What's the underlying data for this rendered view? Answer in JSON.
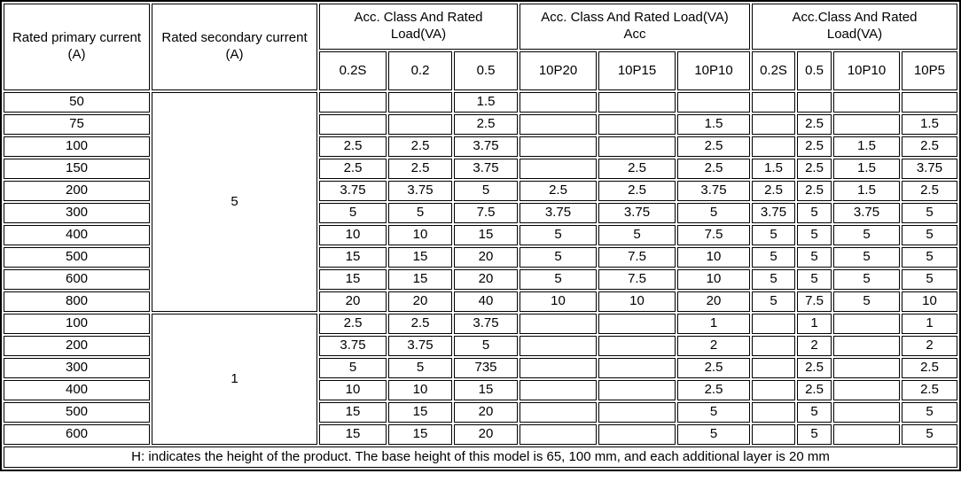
{
  "table": {
    "headers": {
      "primary": "Rated primary current (A)",
      "secondary": "Rated secondary current (A)"
    },
    "groups": [
      {
        "label": "Acc. Class And Rated Load(VA)",
        "cols": [
          "0.2S",
          "0.2",
          "0.5"
        ]
      },
      {
        "label": "Acc. Class And Rated Load(VA) Acc",
        "cols": [
          "10P20",
          "10P15",
          "10P10"
        ]
      },
      {
        "label": "Acc.Class And Rated Load(VA)",
        "cols": [
          "0.2S",
          "0.5",
          "10P10",
          "10P5"
        ]
      }
    ],
    "blocks": [
      {
        "secondary_current": "5",
        "rows": [
          {
            "primary": "50",
            "values": [
              "",
              "",
              "1.5",
              "",
              "",
              "",
              "",
              "",
              "",
              ""
            ]
          },
          {
            "primary": "75",
            "values": [
              "",
              "",
              "2.5",
              "",
              "",
              "1.5",
              "",
              "2.5",
              "",
              "1.5"
            ]
          },
          {
            "primary": "100",
            "values": [
              "2.5",
              "2.5",
              "3.75",
              "",
              "",
              "2.5",
              "",
              "2.5",
              "1.5",
              "2.5"
            ]
          },
          {
            "primary": "150",
            "values": [
              "2.5",
              "2.5",
              "3.75",
              "",
              "2.5",
              "2.5",
              "1.5",
              "2.5",
              "1.5",
              "3.75"
            ]
          },
          {
            "primary": "200",
            "values": [
              "3.75",
              "3.75",
              "5",
              "2.5",
              "2.5",
              "3.75",
              "2.5",
              "2.5",
              "1.5",
              "2.5"
            ]
          },
          {
            "primary": "300",
            "values": [
              "5",
              "5",
              "7.5",
              "3.75",
              "3.75",
              "5",
              "3.75",
              "5",
              "3.75",
              "5"
            ]
          },
          {
            "primary": "400",
            "values": [
              "10",
              "10",
              "15",
              "5",
              "5",
              "7.5",
              "5",
              "5",
              "5",
              "5"
            ]
          },
          {
            "primary": "500",
            "values": [
              "15",
              "15",
              "20",
              "5",
              "7.5",
              "10",
              "5",
              "5",
              "5",
              "5"
            ]
          },
          {
            "primary": "600",
            "values": [
              "15",
              "15",
              "20",
              "5",
              "7.5",
              "10",
              "5",
              "5",
              "5",
              "5"
            ]
          },
          {
            "primary": "800",
            "values": [
              "20",
              "20",
              "40",
              "10",
              "10",
              "20",
              "5",
              "7.5",
              "5",
              "10"
            ]
          }
        ]
      },
      {
        "secondary_current": "1",
        "rows": [
          {
            "primary": "100",
            "values": [
              "2.5",
              "2.5",
              "3.75",
              "",
              "",
              "1",
              "",
              "1",
              "",
              "1"
            ]
          },
          {
            "primary": "200",
            "values": [
              "3.75",
              "3.75",
              "5",
              "",
              "",
              "2",
              "",
              "2",
              "",
              "2"
            ]
          },
          {
            "primary": "300",
            "values": [
              "5",
              "5",
              "735",
              "",
              "",
              "2.5",
              "",
              "2.5",
              "",
              "2.5"
            ]
          },
          {
            "primary": "400",
            "values": [
              "10",
              "10",
              "15",
              "",
              "",
              "2.5",
              "",
              "2.5",
              "",
              "2.5"
            ]
          },
          {
            "primary": "500",
            "values": [
              "15",
              "15",
              "20",
              "",
              "",
              "5",
              "",
              "5",
              "",
              "5"
            ]
          },
          {
            "primary": "600",
            "values": [
              "15",
              "15",
              "20",
              "",
              "",
              "5",
              "",
              "5",
              "",
              "5"
            ]
          }
        ]
      }
    ],
    "footer_note": "H: indicates the height of the product. The base height of this model is 65, 100 mm, and each additional layer is 20 mm",
    "colors": {
      "border": "#000000",
      "background": "#ffffff",
      "text": "#000000"
    }
  }
}
